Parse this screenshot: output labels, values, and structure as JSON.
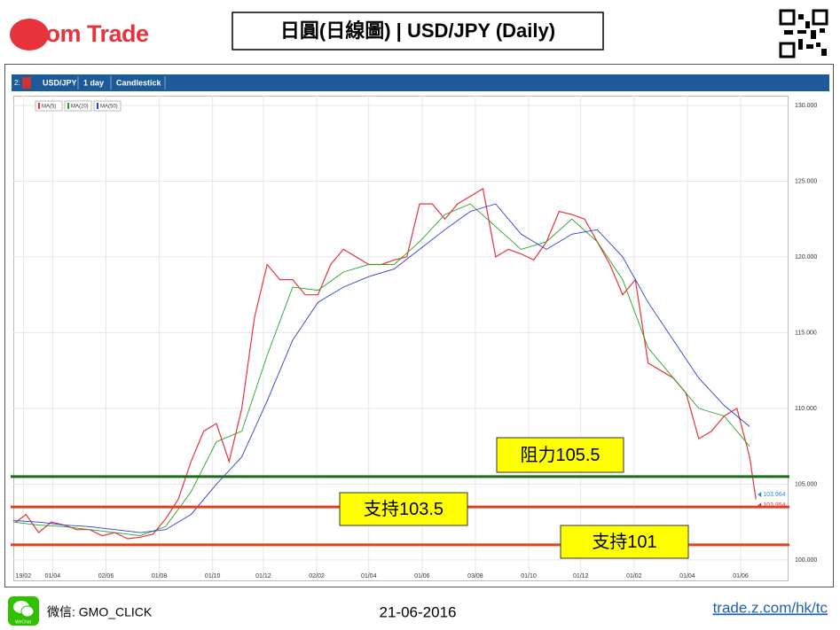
{
  "header": {
    "logo": "Z.com Trade",
    "title": "日圓(日線圖) | USD/JPY (Daily)"
  },
  "toolbar": {
    "pane": "2:",
    "symbol": "USD/JPY",
    "interval": "1 day",
    "style": "Candlestick"
  },
  "chart_data": {
    "type": "line",
    "xlim": [
      0,
      610
    ],
    "xticks": [
      {
        "value": 8,
        "label": "19/02"
      },
      {
        "value": 31,
        "label": "01/04"
      },
      {
        "value": 73,
        "label": "02/06"
      },
      {
        "value": 115,
        "label": "01/08"
      },
      {
        "value": 157,
        "label": "01/10"
      },
      {
        "value": 197,
        "label": "01/12"
      },
      {
        "value": 239,
        "label": "02/02"
      },
      {
        "value": 280,
        "label": "01/04"
      },
      {
        "value": 322,
        "label": "01/06"
      },
      {
        "value": 364,
        "label": "03/08"
      },
      {
        "value": 406,
        "label": "01/10"
      },
      {
        "value": 447,
        "label": "01/12"
      },
      {
        "value": 489,
        "label": "01/02"
      },
      {
        "value": 531,
        "label": "01/04"
      },
      {
        "value": 573,
        "label": "01/06"
      }
    ],
    "ylim": [
      98.65,
      130.64
    ],
    "yticks": [
      {
        "value": 100,
        "label": "100.000"
      },
      {
        "value": 105,
        "label": "105.000"
      },
      {
        "value": 110,
        "label": "110.000"
      },
      {
        "value": 115,
        "label": "115.000"
      },
      {
        "value": 120,
        "label": "120.000"
      },
      {
        "value": 125,
        "label": "125.000"
      },
      {
        "value": 130,
        "label": "130.000"
      }
    ],
    "grid": true,
    "series": [
      {
        "name": "MA(5)",
        "color": "#e8323c",
        "x": [
          2,
          10,
          20,
          30,
          40,
          50,
          60,
          70,
          80,
          90,
          100,
          110,
          120,
          130,
          140,
          150,
          160,
          170,
          180,
          190,
          200,
          210,
          220,
          230,
          240,
          250,
          260,
          270,
          280,
          290,
          300,
          310,
          320,
          330,
          340,
          350,
          360,
          370,
          380,
          390,
          400,
          410,
          420,
          430,
          440,
          450,
          460,
          470,
          480,
          490,
          500,
          510,
          520,
          530,
          540,
          550,
          560,
          570,
          580,
          585
        ],
        "values": [
          102.5,
          103.0,
          101.8,
          102.5,
          102.3,
          102.0,
          102.0,
          101.6,
          101.8,
          101.4,
          101.5,
          101.7,
          102.7,
          104.0,
          106.5,
          108.5,
          109.0,
          106.5,
          110.0,
          116.0,
          119.5,
          118.5,
          118.5,
          117.5,
          117.5,
          119.5,
          120.5,
          120.0,
          119.5,
          119.5,
          119.8,
          120.0,
          123.5,
          123.5,
          122.5,
          123.5,
          124.0,
          124.5,
          120.0,
          120.5,
          120.2,
          119.8,
          121.0,
          123.0,
          122.8,
          122.5,
          121.0,
          119.5,
          117.5,
          118.5,
          113.0,
          112.5,
          112.0,
          111.0,
          108.0,
          108.5,
          109.5,
          110.0,
          106.8,
          104.0
        ]
      },
      {
        "name": "MA(20)",
        "color": "#2aa02a",
        "x": [
          0,
          20,
          40,
          60,
          80,
          100,
          120,
          140,
          160,
          180,
          200,
          220,
          240,
          260,
          280,
          300,
          320,
          340,
          360,
          380,
          400,
          420,
          440,
          460,
          480,
          500,
          520,
          540,
          560,
          580
        ],
        "values": [
          102.5,
          102.3,
          102.2,
          102.0,
          101.8,
          101.6,
          102.2,
          104.5,
          107.8,
          108.5,
          113.5,
          118.0,
          117.8,
          119.0,
          119.5,
          119.5,
          121.0,
          122.8,
          123.5,
          122.0,
          120.5,
          121.0,
          122.5,
          121.0,
          118.5,
          114.0,
          112.0,
          110.0,
          109.5,
          107.5
        ]
      },
      {
        "name": "MA(50)",
        "color": "#2b3fd0",
        "x": [
          0,
          20,
          40,
          60,
          80,
          100,
          120,
          140,
          160,
          180,
          200,
          220,
          240,
          260,
          280,
          300,
          320,
          340,
          360,
          380,
          400,
          420,
          440,
          460,
          480,
          500,
          520,
          540,
          560,
          580
        ],
        "values": [
          102.6,
          102.5,
          102.3,
          102.2,
          102.0,
          101.8,
          102.0,
          103.0,
          105.0,
          106.8,
          110.5,
          114.5,
          117.0,
          118.0,
          118.7,
          119.2,
          120.5,
          121.8,
          123.0,
          123.5,
          121.5,
          120.5,
          121.5,
          121.8,
          120.0,
          117.0,
          114.5,
          112.0,
          110.2,
          108.8
        ]
      }
    ],
    "levels": [
      {
        "value": 105.5,
        "label": "阻力105.5",
        "color": "#1a6e1a"
      },
      {
        "value": 103.5,
        "label": "支持103.5",
        "color": "#e0401c"
      },
      {
        "value": 101,
        "label": "支持101",
        "color": "#e0401c"
      }
    ],
    "price_labels": [
      {
        "value": 103.964,
        "label": "103.964",
        "color": "#2a8ad6"
      },
      {
        "value": 103.954,
        "label": "103.954",
        "color": "#e8323c"
      }
    ]
  },
  "footer": {
    "icon_label": "WeChat",
    "wechat": "微信: GMO_CLICK",
    "date": "21-06-2016",
    "link": "trade.z.com/hk/tc"
  }
}
